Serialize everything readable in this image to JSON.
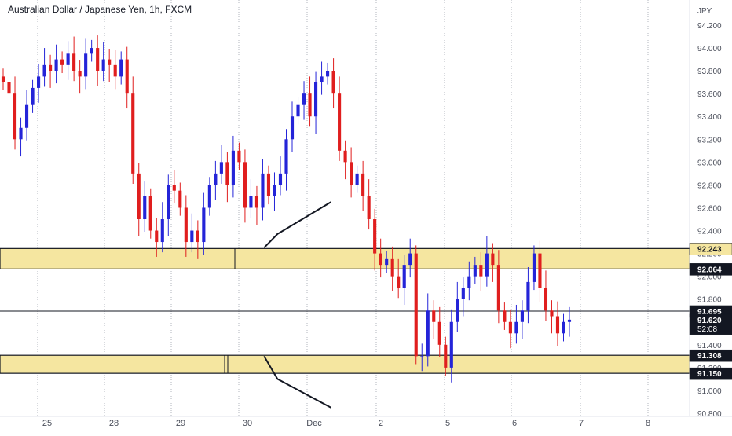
{
  "chart_data": {
    "type": "candlestick",
    "title": "Australian Dollar / Japanese Yen, 1h, FXCM",
    "currency_label": "JPY",
    "y_ticks": [
      "94.200",
      "94.000",
      "93.800",
      "93.600",
      "93.400",
      "93.200",
      "93.000",
      "92.800",
      "92.600",
      "92.400",
      "92.200",
      "92.000",
      "91.800",
      "91.600",
      "91.400",
      "91.200",
      "91.000",
      "90.800"
    ],
    "ylim": [
      90.8,
      94.3
    ],
    "x_ticks": [
      "25",
      "28",
      "29",
      "30",
      "Dec",
      "2",
      "5",
      "6",
      "7",
      "8"
    ],
    "up_color": "#2424d8",
    "down_color": "#e01e1e",
    "zone_fill": "#f5e6a0",
    "zones": [
      {
        "name": "upper-zone",
        "top": 92.243,
        "bottom": 92.064
      },
      {
        "name": "lower-zone",
        "top": 91.308,
        "bottom": 91.15
      }
    ],
    "hline": 91.695,
    "price_labels": [
      {
        "name": "price-label-92243",
        "value": 92.243,
        "text": "92.243",
        "bg": "#f5e6a0",
        "fg": "#131722"
      },
      {
        "name": "price-label-92064",
        "value": 92.064,
        "text": "92.064",
        "bg": "#131722",
        "fg": "#ffffff"
      },
      {
        "name": "price-label-91695",
        "value": 91.695,
        "text": "91.695",
        "bg": "#131722",
        "fg": "#ffffff"
      },
      {
        "name": "price-label-91620",
        "value": 91.62,
        "text": "91.620",
        "sub": "52:08",
        "bg": "#131722",
        "fg": "#ffffff"
      },
      {
        "name": "price-label-91308",
        "value": 91.308,
        "text": "91.308",
        "bg": "#131722",
        "fg": "#ffffff"
      },
      {
        "name": "price-label-91150",
        "value": 91.15,
        "text": "91.150",
        "bg": "#131722",
        "fg": "#ffffff"
      }
    ],
    "path_up": [
      [
        3.25,
        92.25
      ],
      [
        3.45,
        92.37
      ],
      [
        4.25,
        92.65
      ]
    ],
    "path_down": [
      [
        3.25,
        91.3
      ],
      [
        3.45,
        91.1
      ],
      [
        4.25,
        90.85
      ]
    ],
    "closes": [
      93.7,
      93.6,
      93.2,
      93.3,
      93.5,
      93.65,
      93.75,
      93.85,
      93.8,
      93.9,
      93.85,
      93.95,
      93.8,
      93.75,
      93.95,
      94.0,
      93.8,
      93.9,
      93.85,
      93.75,
      93.9,
      93.6,
      92.9,
      92.5,
      92.7,
      92.4,
      92.3,
      92.5,
      92.8,
      92.75,
      92.6,
      92.3,
      92.4,
      92.3,
      92.6,
      92.8,
      92.9,
      93.0,
      92.8,
      93.1,
      93.0,
      92.6,
      92.7,
      92.6,
      92.9,
      92.7,
      92.8,
      92.9,
      93.2,
      93.4,
      93.5,
      93.6,
      93.4,
      93.7,
      93.75,
      93.8,
      93.6,
      93.1,
      93.0,
      92.8,
      92.9,
      92.7,
      92.5,
      92.2,
      92.1,
      92.15,
      92.0,
      91.9,
      92.1,
      92.2,
      91.3,
      91.3,
      91.7,
      91.6,
      91.4,
      91.2,
      91.6,
      91.8,
      91.9,
      92.0,
      92.1,
      92.0,
      92.2,
      92.1,
      91.7,
      91.6,
      91.5,
      91.6,
      91.7,
      91.95,
      92.2,
      91.9,
      91.7,
      91.65,
      91.5,
      91.6,
      91.62
    ]
  }
}
